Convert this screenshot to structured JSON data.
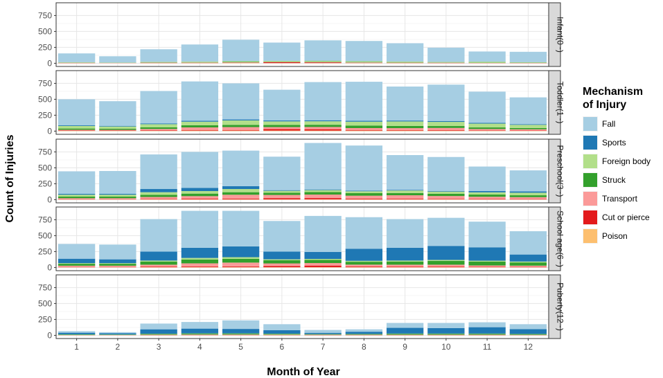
{
  "chart_data": {
    "type": "bar",
    "stacked": true,
    "xlabel": "Month of Year",
    "ylabel": "Count of Injuries",
    "ylim": [
      0,
      900
    ],
    "yticks": [
      0,
      250,
      500,
      750
    ],
    "categories": [
      "1",
      "2",
      "3",
      "4",
      "5",
      "6",
      "7",
      "8",
      "9",
      "10",
      "11",
      "12"
    ],
    "legend": {
      "title_line1": "Mechanism",
      "title_line2": "of Injury",
      "position": "right",
      "items": [
        {
          "name": "Fall",
          "color": "#a6cee3"
        },
        {
          "name": "Sports",
          "color": "#1f78b4"
        },
        {
          "name": "Foreign body",
          "color": "#b2df8a"
        },
        {
          "name": "Struck",
          "color": "#33a02c"
        },
        {
          "name": "Transport",
          "color": "#fb9a99"
        },
        {
          "name": "Cut or pierce",
          "color": "#e31a1c"
        },
        {
          "name": "Poison",
          "color": "#fdbf6f"
        }
      ]
    },
    "stack_order_bottom_to_top": [
      "Poison",
      "Cut or pierce",
      "Transport",
      "Struck",
      "Foreign body",
      "Sports",
      "Fall"
    ],
    "panels": [
      {
        "label": "Infant(0~)",
        "series": {
          "Poison": [
            2,
            2,
            3,
            3,
            4,
            3,
            3,
            3,
            3,
            2,
            2,
            2
          ],
          "Cut or pierce": [
            2,
            1,
            3,
            3,
            4,
            12,
            10,
            4,
            3,
            3,
            2,
            2
          ],
          "Transport": [
            4,
            3,
            5,
            6,
            6,
            5,
            6,
            6,
            5,
            4,
            3,
            3
          ],
          "Struck": [
            3,
            2,
            4,
            5,
            6,
            5,
            6,
            6,
            5,
            4,
            3,
            3
          ],
          "Foreign body": [
            5,
            4,
            7,
            10,
            15,
            12,
            15,
            15,
            12,
            8,
            15,
            7
          ],
          "Sports": [
            1,
            1,
            1,
            2,
            2,
            2,
            2,
            2,
            2,
            2,
            1,
            1
          ],
          "Fall": [
            138,
            97,
            197,
            266,
            333,
            286,
            318,
            314,
            285,
            222,
            159,
            162
          ]
        }
      },
      {
        "label": "Toddler(1~)",
        "series": {
          "Poison": [
            5,
            5,
            6,
            8,
            8,
            8,
            8,
            8,
            8,
            7,
            6,
            5
          ],
          "Cut or pierce": [
            6,
            5,
            8,
            10,
            10,
            25,
            22,
            10,
            9,
            8,
            7,
            6
          ],
          "Transport": [
            10,
            10,
            20,
            40,
            45,
            30,
            35,
            30,
            30,
            35,
            20,
            18
          ],
          "Struck": [
            20,
            18,
            25,
            35,
            35,
            35,
            35,
            40,
            35,
            30,
            25,
            20
          ],
          "Foreign body": [
            40,
            35,
            50,
            55,
            70,
            55,
            55,
            60,
            70,
            65,
            60,
            50
          ],
          "Sports": [
            10,
            10,
            12,
            15,
            15,
            14,
            15,
            15,
            14,
            14,
            12,
            10
          ],
          "Fall": [
            409,
            387,
            509,
            617,
            567,
            483,
            600,
            612,
            534,
            571,
            490,
            421
          ]
        }
      },
      {
        "label": "Preschool(3~)",
        "series": {
          "Poison": [
            3,
            3,
            4,
            5,
            5,
            4,
            5,
            5,
            4,
            4,
            3,
            3
          ],
          "Cut or pierce": [
            5,
            5,
            8,
            10,
            12,
            20,
            20,
            12,
            10,
            8,
            7,
            6
          ],
          "Transport": [
            15,
            15,
            30,
            40,
            60,
            50,
            55,
            45,
            55,
            45,
            35,
            30
          ],
          "Struck": [
            25,
            25,
            35,
            40,
            40,
            35,
            40,
            40,
            35,
            35,
            35,
            30
          ],
          "Foreign body": [
            30,
            30,
            40,
            40,
            50,
            30,
            30,
            30,
            40,
            35,
            35,
            40
          ],
          "Sports": [
            15,
            15,
            50,
            50,
            45,
            10,
            10,
            10,
            10,
            10,
            20,
            20
          ],
          "Fall": [
            352,
            357,
            543,
            565,
            558,
            526,
            730,
            708,
            546,
            533,
            385,
            331
          ]
        }
      },
      {
        "label": "School age(6~)",
        "series": {
          "Poison": [
            3,
            3,
            4,
            5,
            5,
            4,
            5,
            5,
            4,
            4,
            4,
            3
          ],
          "Cut or pierce": [
            5,
            5,
            10,
            10,
            12,
            20,
            25,
            10,
            10,
            10,
            8,
            6
          ],
          "Transport": [
            20,
            20,
            30,
            50,
            60,
            40,
            40,
            30,
            30,
            30,
            20,
            20
          ],
          "Struck": [
            30,
            30,
            50,
            60,
            60,
            50,
            50,
            45,
            50,
            60,
            60,
            50
          ],
          "Foreign body": [
            10,
            10,
            15,
            25,
            25,
            15,
            15,
            15,
            15,
            15,
            15,
            15
          ],
          "Sports": [
            70,
            60,
            140,
            160,
            170,
            120,
            110,
            190,
            200,
            220,
            210,
            110
          ],
          "Fall": [
            232,
            232,
            511,
            580,
            558,
            481,
            565,
            495,
            451,
            441,
            403,
            366
          ]
        }
      },
      {
        "label": "Puberty(12~)",
        "series": {
          "Poison": [
            1,
            1,
            2,
            2,
            2,
            2,
            2,
            2,
            2,
            2,
            2,
            1
          ],
          "Cut or pierce": [
            2,
            2,
            3,
            3,
            3,
            3,
            3,
            3,
            3,
            3,
            3,
            2
          ],
          "Transport": [
            3,
            3,
            5,
            8,
            8,
            6,
            5,
            5,
            5,
            5,
            5,
            5
          ],
          "Struck": [
            8,
            6,
            12,
            15,
            15,
            12,
            8,
            10,
            15,
            15,
            15,
            12
          ],
          "Foreign body": [
            2,
            2,
            3,
            3,
            3,
            3,
            2,
            2,
            3,
            3,
            3,
            2
          ],
          "Sports": [
            25,
            20,
            70,
            75,
            70,
            55,
            20,
            35,
            90,
            85,
            100,
            75
          ],
          "Fall": [
            24,
            16,
            90,
            104,
            134,
            94,
            45,
            38,
            77,
            82,
            77,
            78
          ]
        }
      }
    ]
  }
}
